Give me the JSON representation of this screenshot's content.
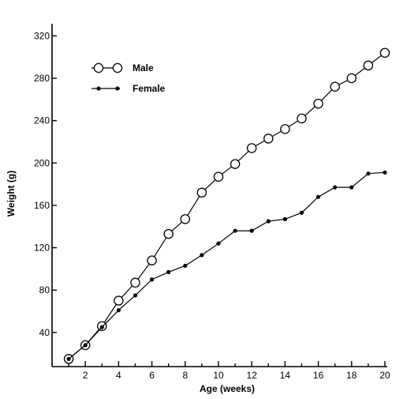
{
  "chart_data": {
    "type": "line",
    "xlabel": "Age (weeks)",
    "ylabel": "Weight (g)",
    "xlim": [
      0,
      20
    ],
    "ylim": [
      10,
      320
    ],
    "xticks": [
      2,
      4,
      6,
      8,
      10,
      12,
      14,
      16,
      18,
      20
    ],
    "yticks": [
      40,
      80,
      120,
      160,
      200,
      240,
      280,
      320
    ],
    "grid": false,
    "legend_position": "top-left",
    "series": [
      {
        "name": "Male",
        "marker": "open-circle",
        "x": [
          1,
          2,
          3,
          4,
          5,
          6,
          7,
          8,
          9,
          10,
          11,
          12,
          13,
          14,
          15,
          16,
          17,
          18,
          19,
          20
        ],
        "values": [
          15,
          28,
          46,
          70,
          87,
          108,
          133,
          147,
          172,
          187,
          199,
          214,
          223,
          232,
          242,
          256,
          272,
          280,
          292,
          304
        ]
      },
      {
        "name": "Female",
        "marker": "filled-dot",
        "x": [
          1,
          2,
          3,
          4,
          5,
          6,
          7,
          8,
          9,
          10,
          11,
          12,
          13,
          14,
          15,
          16,
          17,
          18,
          19,
          20
        ],
        "values": [
          15,
          28,
          45,
          61,
          75,
          90,
          97,
          103,
          113,
          124,
          136,
          136,
          145,
          147,
          153,
          168,
          177,
          177,
          190,
          191
        ]
      }
    ]
  }
}
